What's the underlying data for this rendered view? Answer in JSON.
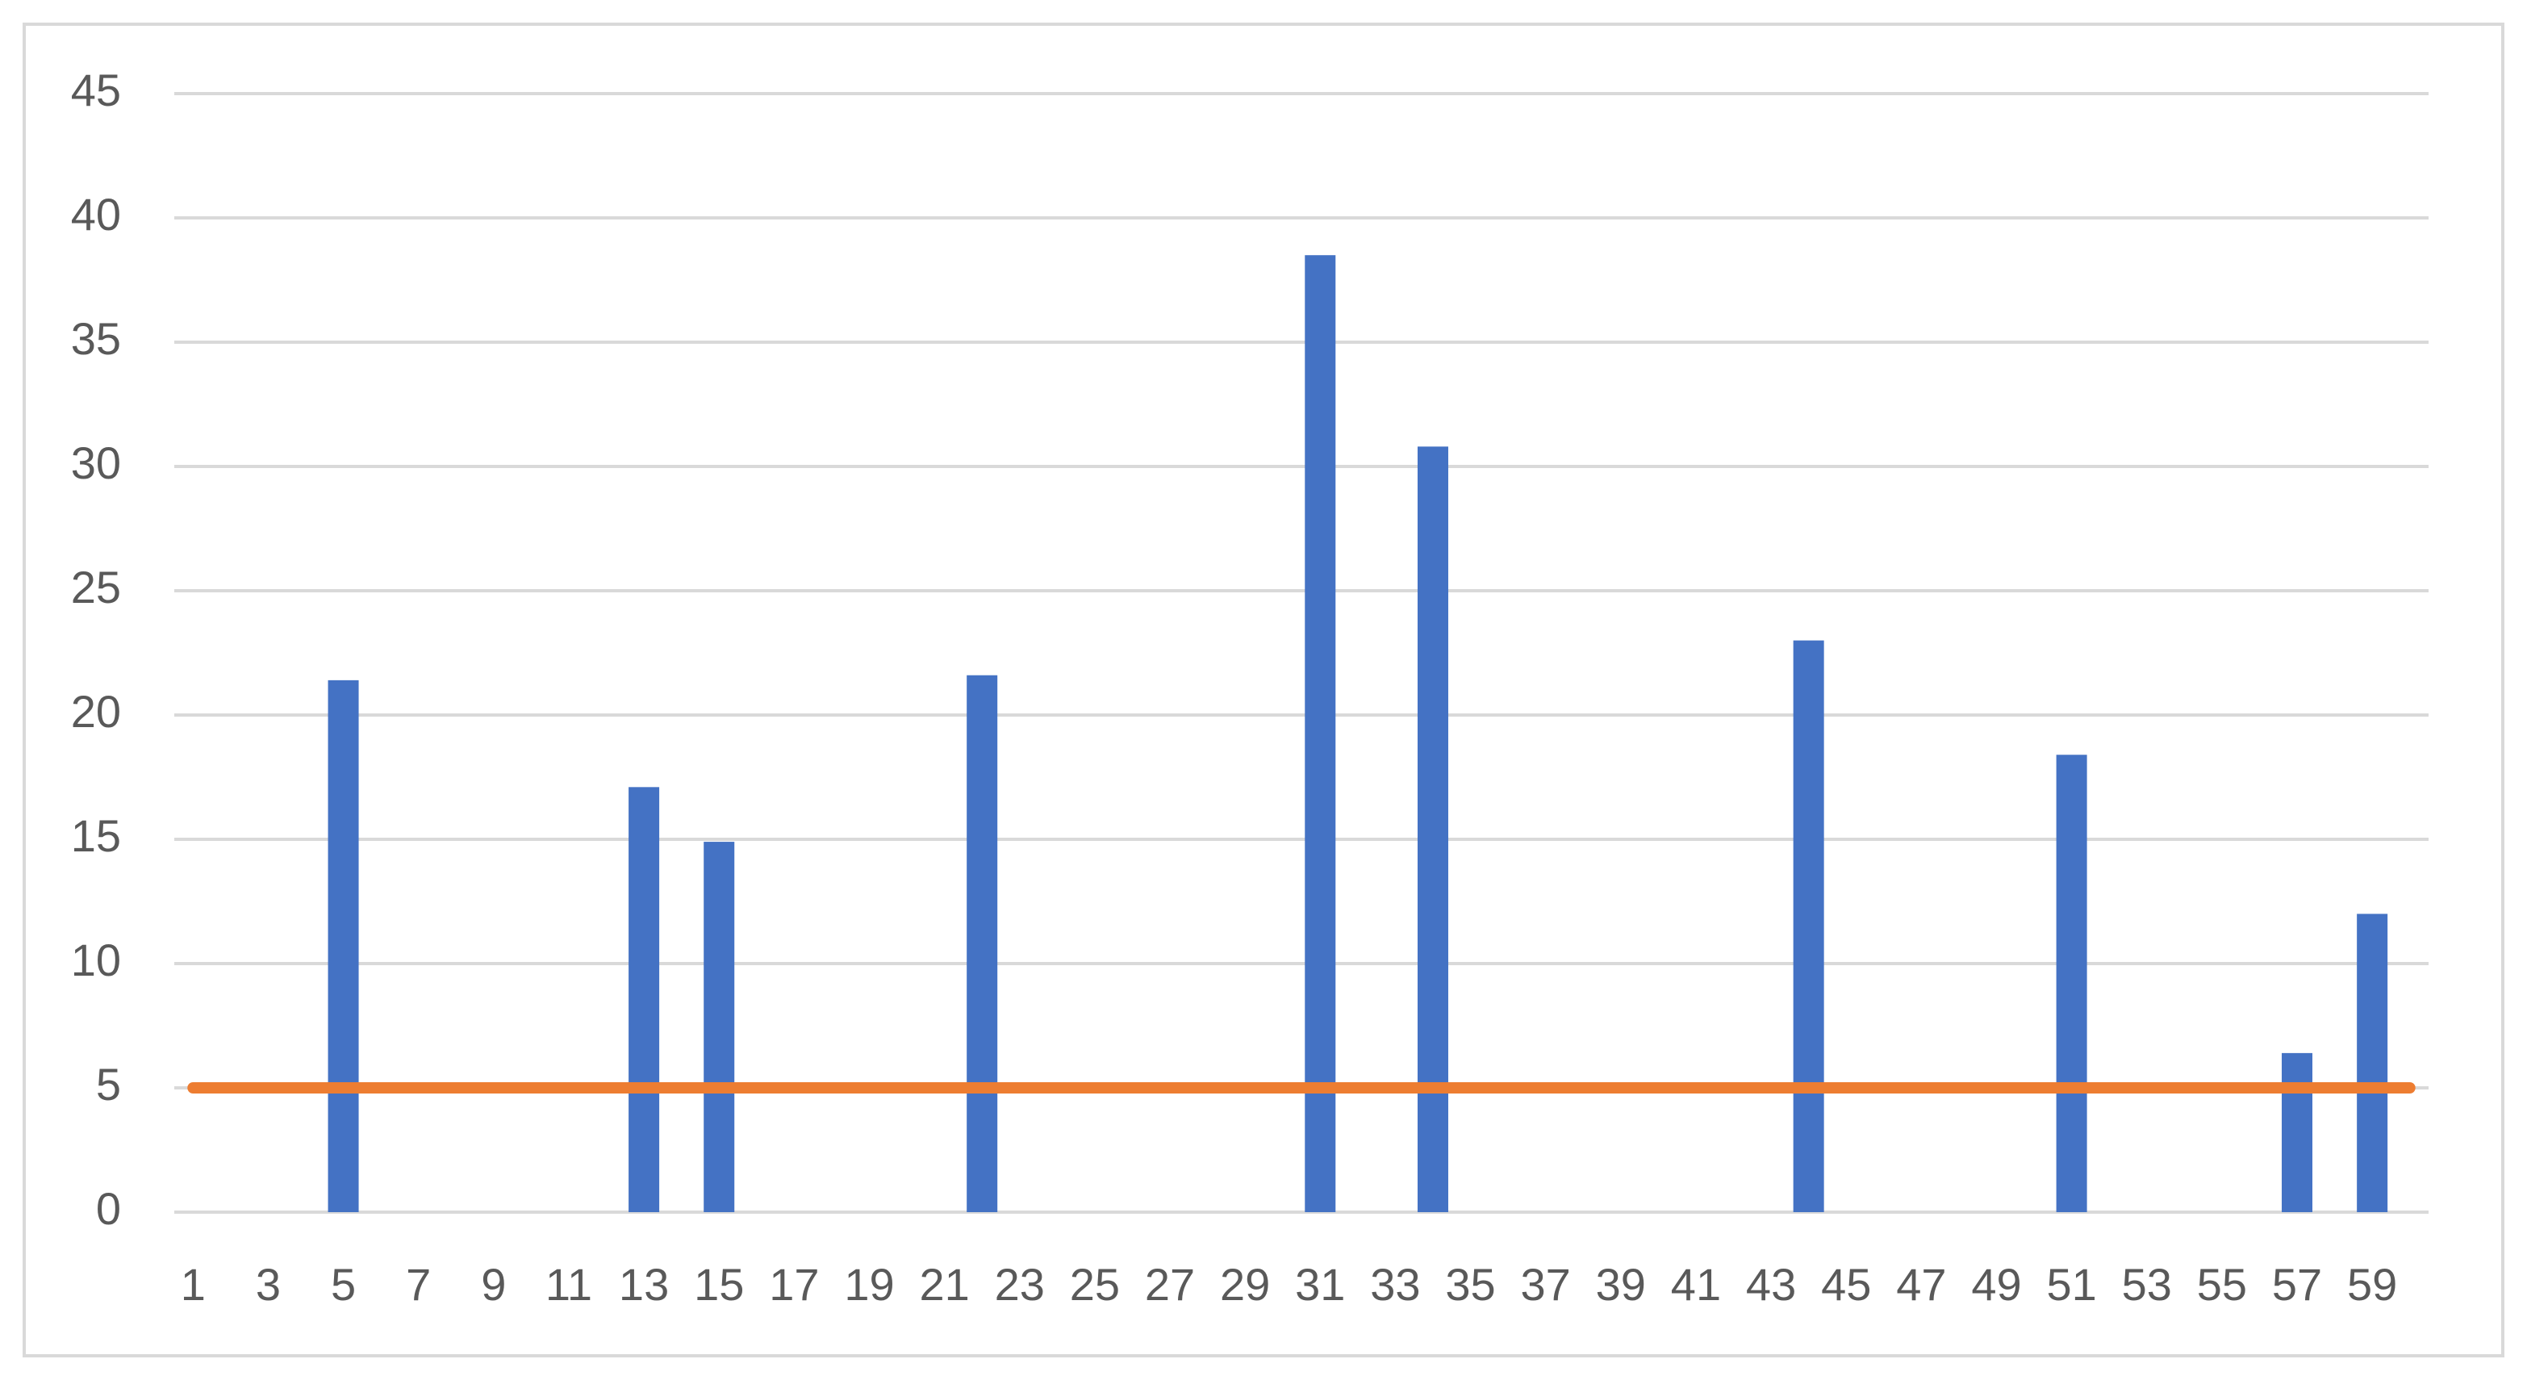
{
  "chart_data": {
    "type": "bar",
    "categories": [
      "1",
      null,
      "3",
      null,
      "5",
      null,
      "7",
      null,
      "9",
      null,
      "11",
      null,
      "13",
      null,
      "15",
      null,
      "17",
      null,
      "19",
      null,
      "21",
      null,
      "23",
      null,
      "25",
      null,
      "27",
      null,
      "29",
      null,
      "31",
      null,
      "33",
      null,
      "35",
      null,
      "37",
      null,
      "39",
      null,
      "41",
      null,
      "43",
      null,
      "45",
      null,
      "47",
      null,
      "49",
      null,
      "51",
      null,
      "53",
      null,
      "55",
      null,
      "57",
      null,
      "59",
      null
    ],
    "series": [
      {
        "type": "bar",
        "color": "#4472c4",
        "values": [
          0,
          0,
          0,
          0,
          21.4,
          0,
          0,
          0,
          0,
          0,
          0,
          0,
          17.1,
          0,
          14.9,
          0,
          0,
          0,
          0,
          0,
          0,
          21.6,
          0,
          0,
          0,
          0,
          0,
          0,
          0,
          0,
          38.5,
          0,
          0,
          30.8,
          0,
          0,
          0,
          0,
          0,
          0,
          0,
          0,
          0,
          23,
          0,
          0,
          0,
          0,
          0,
          0,
          18.4,
          0,
          0,
          0,
          0,
          0,
          6.4,
          0,
          12,
          0
        ]
      },
      {
        "type": "line",
        "color": "#ed7d31",
        "values": [
          5,
          5,
          5,
          5,
          5,
          5,
          5,
          5,
          5,
          5,
          5,
          5,
          5,
          5,
          5,
          5,
          5,
          5,
          5,
          5,
          5,
          5,
          5,
          5,
          5,
          5,
          5,
          5,
          5,
          5,
          5,
          5,
          5,
          5,
          5,
          5,
          5,
          5,
          5,
          5,
          5,
          5,
          5,
          5,
          5,
          5,
          5,
          5,
          5,
          5,
          5,
          5,
          5,
          5,
          5,
          5,
          5,
          5,
          5,
          5
        ]
      }
    ],
    "ylim": [
      0,
      45
    ],
    "yticks": [
      0,
      5,
      10,
      15,
      20,
      25,
      30,
      35,
      40,
      45
    ],
    "grid": true
  }
}
